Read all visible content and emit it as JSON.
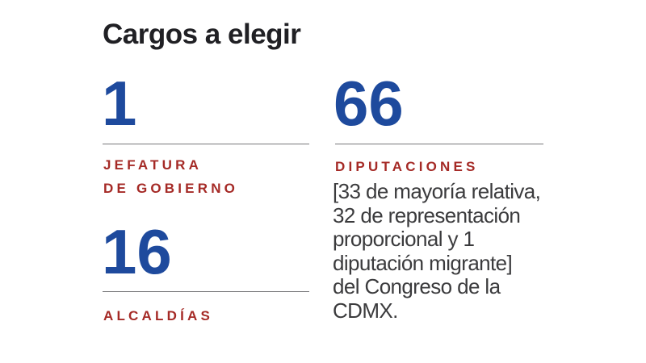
{
  "page": {
    "background": "#ffffff"
  },
  "colors": {
    "title_black": "#202024",
    "accent_blue": "#1e4a9d",
    "accent_red": "#a52a26",
    "body_gray": "#3b3b3d",
    "rule_gray": "#77787a"
  },
  "title": "Cargos a elegir",
  "stats": {
    "jefatura": {
      "value": "1",
      "label_line1": "JEFATURA",
      "label_line2": "DE GOBIERNO"
    },
    "alcaldias": {
      "value": "16",
      "label": "ALCALDÍAS"
    },
    "diputaciones": {
      "value": "66",
      "label": "DIPUTACIONES",
      "description_lines": [
        "[33 de mayoría relativa,",
        "32 de representación",
        "proporcional y 1",
        "diputación migrante]",
        "del Congreso de la",
        "CDMX."
      ]
    }
  },
  "chart_data": {
    "type": "table",
    "title": "Cargos a elegir",
    "categories": [
      "Jefatura de Gobierno",
      "Alcaldías",
      "Diputaciones"
    ],
    "values": [
      1,
      16,
      66
    ],
    "annotations": [
      "",
      "",
      "[33 de mayoría relativa, 32 de representación proporcional y 1 diputación migrante] del Congreso de la CDMX."
    ],
    "layout": "two-column stat infographic, values in blue above thin gray rules, category labels in dark red uppercase"
  }
}
